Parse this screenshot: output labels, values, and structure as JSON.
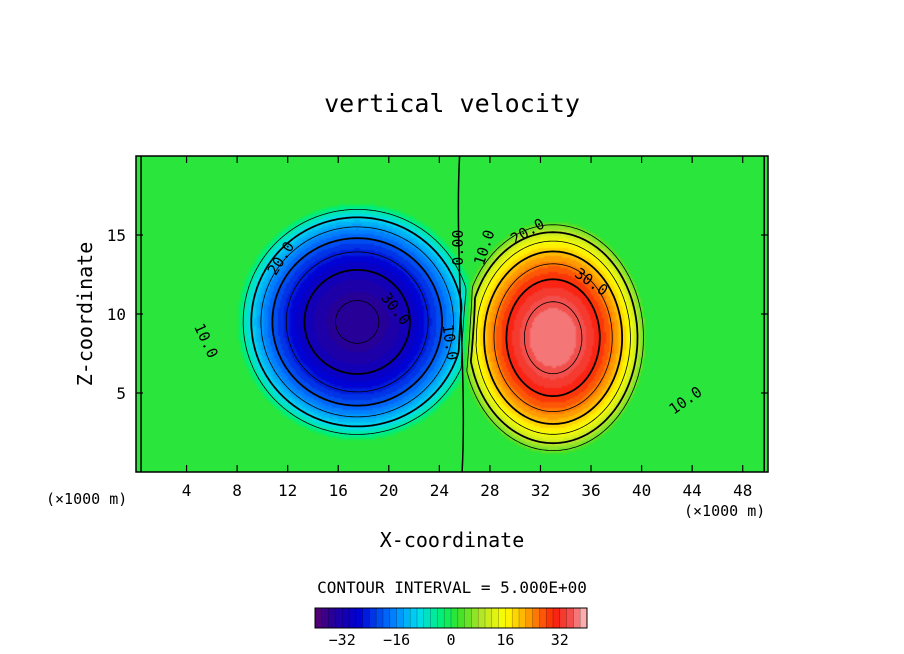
{
  "chart_data": {
    "type": "contour",
    "title": "vertical velocity",
    "xlabel": "X-coordinate",
    "ylabel": "Z-coordinate",
    "x_unit_label": "(×1000 m)",
    "z_unit_label": "(×1000 m)",
    "xlim": [
      0,
      50
    ],
    "ylim": [
      0,
      20
    ],
    "x_ticks": [
      4,
      8,
      12,
      16,
      20,
      24,
      28,
      32,
      36,
      40,
      44,
      48
    ],
    "y_ticks": [
      5,
      10,
      15
    ],
    "contour_interval_text": "CONTOUR INTERVAL = 5.000E+00",
    "contour_interval": 5,
    "field": {
      "cells": [
        {
          "sign": -1,
          "center": [
            17.5,
            9.5
          ],
          "radius": [
            9.5,
            7.5
          ],
          "peak": -36
        },
        {
          "sign": 1,
          "center": [
            33,
            8.5
          ],
          "radius": [
            7.5,
            7.5
          ],
          "peak": 38
        }
      ]
    },
    "contour_labels": [
      {
        "text": "20.0",
        "x": 11.5,
        "y": 13.5,
        "rotate": -58
      },
      {
        "text": "30.0",
        "x": 20.5,
        "y": 10.3,
        "rotate": 52
      },
      {
        "text": "10.0",
        "x": 5.5,
        "y": 8.3,
        "rotate": 65
      },
      {
        "text": "0.00",
        "x": 25.5,
        "y": 14.2,
        "rotate": -90
      },
      {
        "text": "10.0",
        "x": 24.8,
        "y": 8.2,
        "rotate": 82
      },
      {
        "text": "10.0",
        "x": 27.6,
        "y": 14.2,
        "rotate": -72
      },
      {
        "text": "20.0",
        "x": 31,
        "y": 15.2,
        "rotate": -30
      },
      {
        "text": "30.0",
        "x": 36,
        "y": 12,
        "rotate": 35
      },
      {
        "text": "10.0",
        "x": 43.5,
        "y": 4.5,
        "rotate": -35
      }
    ],
    "colorbar": {
      "min": -40,
      "max": 40,
      "ticks": [
        -32,
        -16,
        0,
        16,
        32
      ],
      "tick_labels": [
        "−32",
        "−16",
        "0",
        "16",
        "32"
      ]
    }
  }
}
